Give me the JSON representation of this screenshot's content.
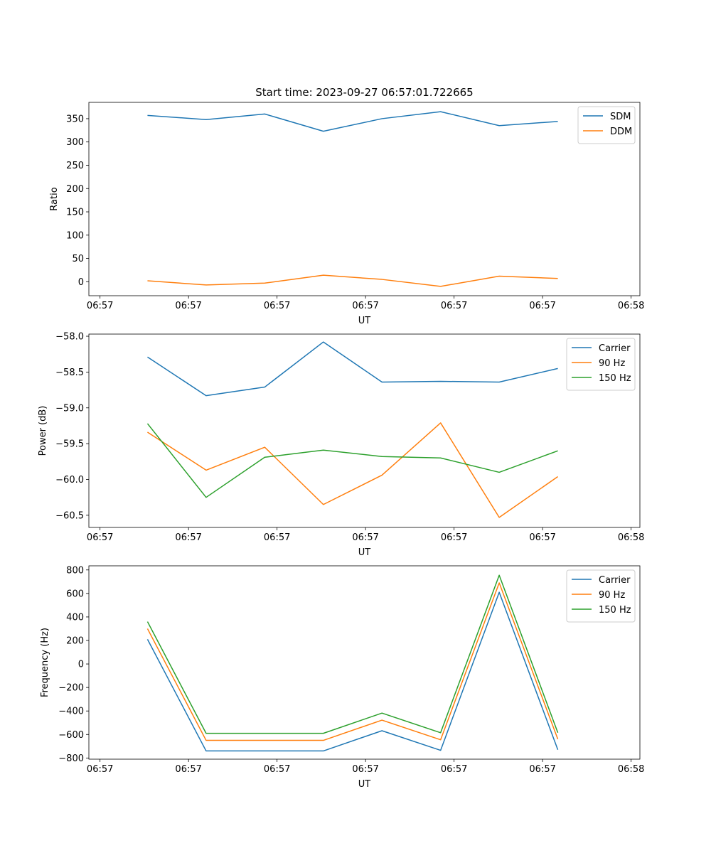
{
  "chart_data": [
    {
      "type": "line",
      "title": "Start time: 2023-09-27 06:57:01.722665",
      "xlabel": "UT",
      "ylabel": "Ratio",
      "x": [
        1,
        2,
        3,
        4,
        5,
        6,
        7,
        8
      ],
      "xlim": [
        0,
        9.4
      ],
      "xticks": [
        0.19,
        1.7,
        3.21,
        4.72,
        6.23,
        7.74,
        9.25
      ],
      "xtick_labels": [
        "06:57",
        "06:57",
        "06:57",
        "06:57",
        "06:57",
        "06:57",
        "06:58"
      ],
      "ylim": [
        -30,
        385
      ],
      "yticks": [
        0,
        50,
        100,
        150,
        200,
        250,
        300,
        350
      ],
      "legend": "upper right",
      "series": [
        {
          "name": "SDM",
          "color": "#1f77b4",
          "values": [
            357,
            348,
            360,
            323,
            350,
            365,
            335,
            344
          ]
        },
        {
          "name": "DDM",
          "color": "#ff7f0e",
          "values": [
            2,
            -7,
            -3,
            14,
            5,
            -10,
            12,
            7
          ]
        }
      ]
    },
    {
      "type": "line",
      "title": "",
      "xlabel": "UT",
      "ylabel": "Power (dB)",
      "x": [
        1,
        2,
        3,
        4,
        5,
        6,
        7,
        8
      ],
      "xlim": [
        0,
        9.4
      ],
      "xticks": [
        0.19,
        1.7,
        3.21,
        4.72,
        6.23,
        7.74,
        9.25
      ],
      "xtick_labels": [
        "06:57",
        "06:57",
        "06:57",
        "06:57",
        "06:57",
        "06:57",
        "06:58"
      ],
      "ylim": [
        -60.67,
        -57.97
      ],
      "yticks": [
        -60.5,
        -60.0,
        -59.5,
        -59.0,
        -58.5,
        -58.0
      ],
      "ytick_labels": [
        "−60.5",
        "−60.0",
        "−59.5",
        "−59.0",
        "−58.5",
        "−58.0"
      ],
      "legend": "upper right",
      "series": [
        {
          "name": "Carrier",
          "color": "#1f77b4",
          "values": [
            -58.29,
            -58.83,
            -58.71,
            -58.08,
            -58.64,
            -58.63,
            -58.64,
            -58.45
          ]
        },
        {
          "name": "90 Hz",
          "color": "#ff7f0e",
          "values": [
            -59.34,
            -59.87,
            -59.55,
            -60.35,
            -59.94,
            -59.21,
            -60.53,
            -59.96
          ]
        },
        {
          "name": "150 Hz",
          "color": "#2ca02c",
          "values": [
            -59.22,
            -60.25,
            -59.69,
            -59.59,
            -59.68,
            -59.7,
            -59.9,
            -59.6
          ]
        }
      ]
    },
    {
      "type": "line",
      "title": "",
      "xlabel": "UT",
      "ylabel": "Frequency (Hz)",
      "x": [
        1,
        2,
        3,
        4,
        5,
        6,
        7,
        8
      ],
      "xlim": [
        0,
        9.4
      ],
      "xticks": [
        0.19,
        1.7,
        3.21,
        4.72,
        6.23,
        7.74,
        9.25
      ],
      "xtick_labels": [
        "06:57",
        "06:57",
        "06:57",
        "06:57",
        "06:57",
        "06:57",
        "06:58"
      ],
      "ylim": [
        -810,
        835
      ],
      "yticks": [
        -800,
        -600,
        -400,
        -200,
        0,
        200,
        400,
        600,
        800
      ],
      "ytick_labels": [
        "−800",
        "−600",
        "−400",
        "−200",
        "0",
        "200",
        "400",
        "600",
        "800"
      ],
      "legend": "upper right",
      "series": [
        {
          "name": "Carrier",
          "color": "#1f77b4",
          "values": [
            210,
            -740,
            -740,
            -740,
            -568,
            -735,
            610,
            -730
          ]
        },
        {
          "name": "90 Hz",
          "color": "#ff7f0e",
          "values": [
            300,
            -650,
            -650,
            -650,
            -478,
            -645,
            690,
            -640
          ]
        },
        {
          "name": "150 Hz",
          "color": "#2ca02c",
          "values": [
            360,
            -590,
            -590,
            -590,
            -418,
            -585,
            755,
            -585
          ]
        }
      ]
    }
  ]
}
